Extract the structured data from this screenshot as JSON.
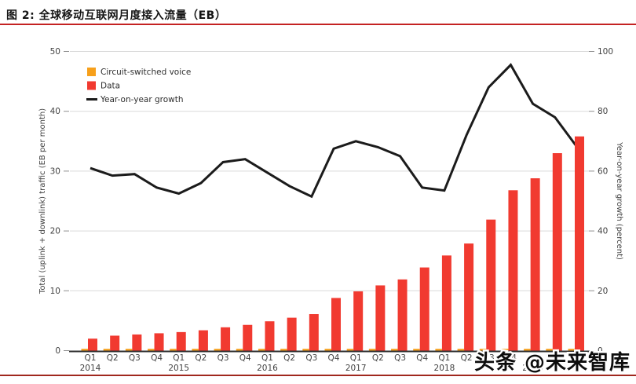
{
  "figure": {
    "title": "图 2: 全球移动互联网月度接入流量（EB）",
    "watermark": "头条 @未来智库",
    "title_rule_color": "#c42222",
    "bottom_rule_color": "#a0281e"
  },
  "chart_data": {
    "type": "bar",
    "title": "全球移动互联网月度接入流量（EB）",
    "categories": [
      "Q1",
      "Q2",
      "Q3",
      "Q4",
      "Q1",
      "Q2",
      "Q3",
      "Q4",
      "Q1",
      "Q2",
      "Q3",
      "Q4",
      "Q1",
      "Q2",
      "Q3",
      "Q4",
      "Q1",
      "Q2",
      "Q3",
      "Q4",
      "Q1",
      "Q2",
      "Q3"
    ],
    "year_marks": [
      {
        "index": 0,
        "label": "2014"
      },
      {
        "index": 4,
        "label": "2015"
      },
      {
        "index": 8,
        "label": "2016"
      },
      {
        "index": 12,
        "label": "2017"
      },
      {
        "index": 16,
        "label": "2018"
      },
      {
        "index": 20,
        "label": "2019"
      }
    ],
    "series": [
      {
        "name": "Circuit-switched voice",
        "type": "bar",
        "axis": "left",
        "color": "#f7a01b",
        "values": [
          0.3,
          0.3,
          0.3,
          0.3,
          0.3,
          0.3,
          0.3,
          0.3,
          0.3,
          0.3,
          0.3,
          0.3,
          0.3,
          0.3,
          0.3,
          0.3,
          0.3,
          0.3,
          0.3,
          0.3,
          0.3,
          0.3,
          0.3
        ]
      },
      {
        "name": "Data",
        "type": "bar",
        "axis": "left",
        "color": "#f13a30",
        "values": [
          2.0,
          2.5,
          2.7,
          2.9,
          3.1,
          3.4,
          3.9,
          4.3,
          4.9,
          5.5,
          6.1,
          8.8,
          9.9,
          10.9,
          11.9,
          13.9,
          15.9,
          17.9,
          21.9,
          26.8,
          28.8,
          33.0,
          35.8
        ]
      },
      {
        "name": "Year-on-year growth",
        "type": "line",
        "axis": "right",
        "color": "#1b1b1b",
        "values": [
          61,
          58.5,
          59,
          54.5,
          52.5,
          56,
          63,
          64,
          59.5,
          55,
          51.5,
          67.5,
          70,
          68,
          65,
          54.5,
          53.5,
          72,
          88,
          95.5,
          82.5,
          78,
          68
        ]
      }
    ],
    "left_axis": {
      "title": "Total (uplink + downlink) traffic (EB per month)",
      "min": 0,
      "max": 50,
      "ticks": [
        0,
        10,
        20,
        30,
        40,
        50
      ]
    },
    "right_axis": {
      "title": "Year-on-year growth (percent)",
      "min": 0,
      "max": 100,
      "ticks": [
        0,
        20,
        40,
        60,
        80,
        100
      ]
    },
    "grid": true,
    "legend_position": "top-left",
    "colors": {
      "grid": "#d9d9d9",
      "axis_line": "#2e2e2e",
      "tick": "#8f8f8f",
      "text": "#414141",
      "legend_text": "#2e2e2e"
    }
  }
}
